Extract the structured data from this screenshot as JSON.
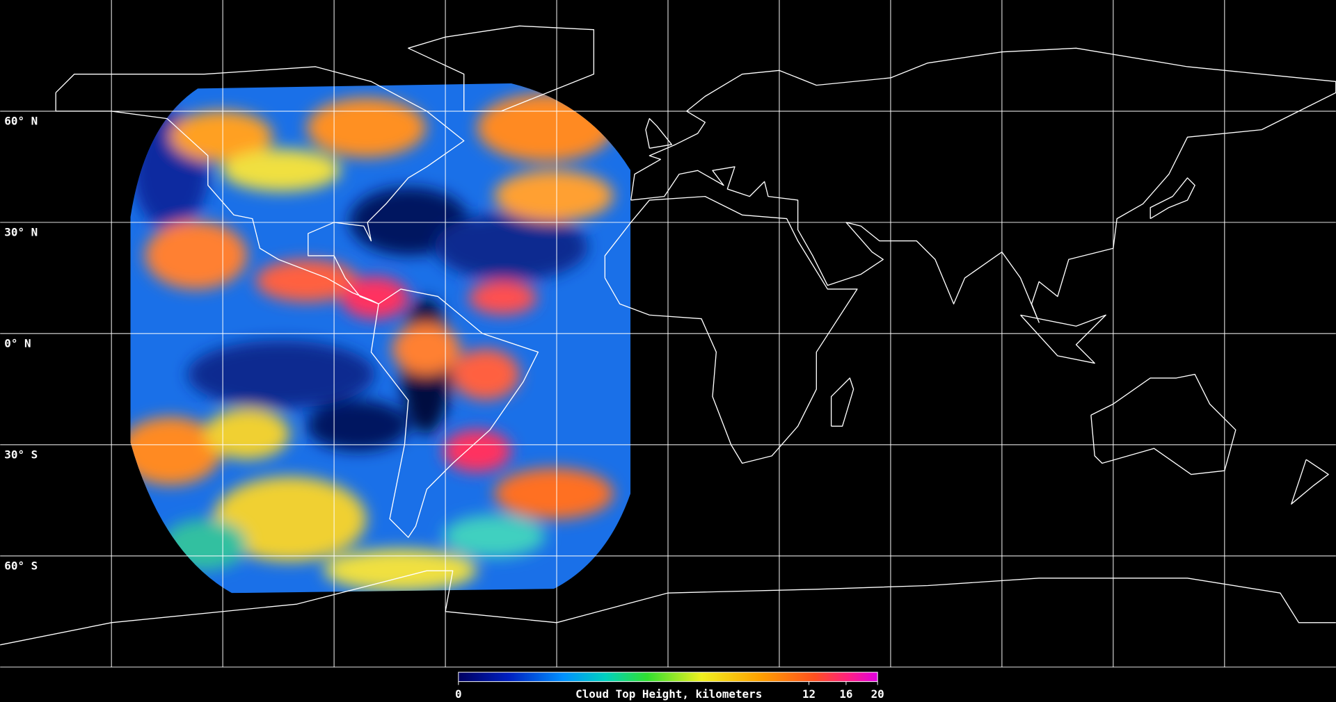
{
  "latitude_labels": [
    "60° N",
    "30° N",
    "0° N",
    "30° S",
    "60° S"
  ],
  "colorbar": {
    "label": "Cloud Top Height, kilometers",
    "range": [
      0,
      20
    ],
    "ticks": [
      0,
      12,
      16,
      20
    ]
  }
}
